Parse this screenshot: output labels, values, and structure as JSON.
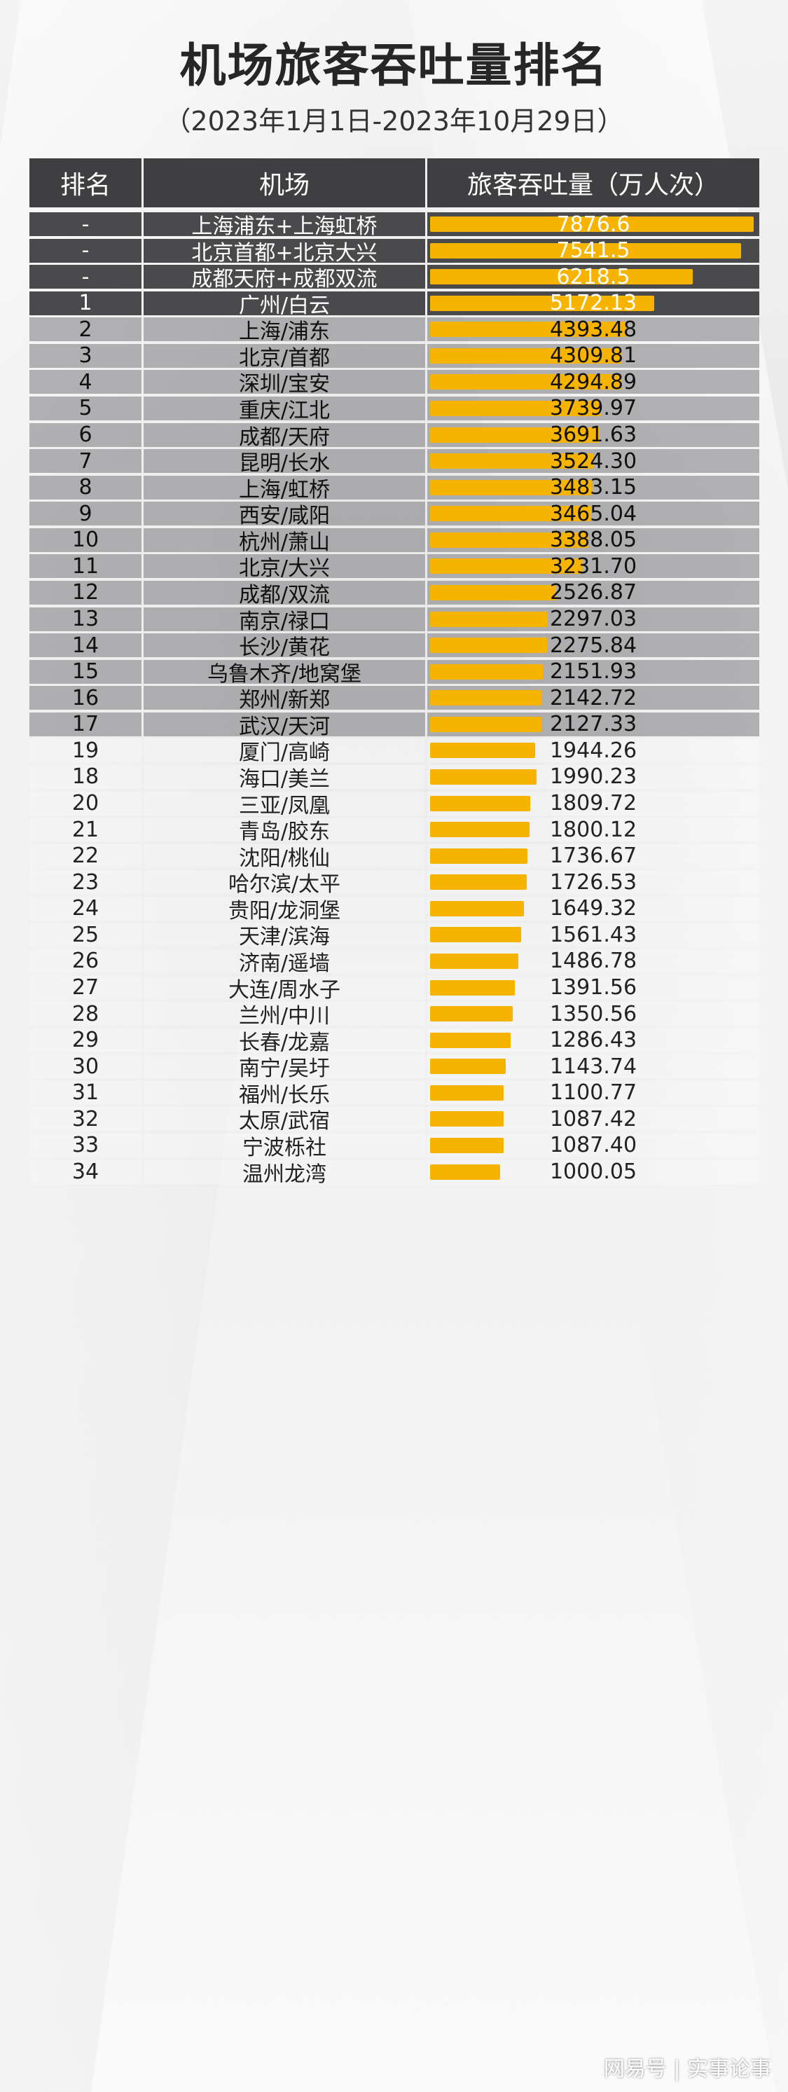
{
  "title": "机场旅客吞吐量排名",
  "subtitle": "（2023年1月1日-2023年10月29日）",
  "watermark": "网易号 | 实事论事",
  "colors": {
    "bar": "#f6b300",
    "header": "#3f3f41",
    "dark_row": "#4a4a4c"
  },
  "chart_data": {
    "type": "table",
    "title": "机场旅客吞吐量排名",
    "subtitle": "（2023年1月1日-2023年10月29日）",
    "columns": [
      "排名",
      "机场",
      "旅客吞吐量（万人次）"
    ],
    "bar_max": 7876.6,
    "rows": [
      {
        "rank": "-",
        "airport": "上海浦东+上海虹桥",
        "value": "7876.6",
        "shade": "dark"
      },
      {
        "rank": "-",
        "airport": "北京首都+北京大兴",
        "value": "7541.5",
        "shade": "dark"
      },
      {
        "rank": "-",
        "airport": "成都天府+成都双流",
        "value": "6218.5",
        "shade": "dark"
      },
      {
        "rank": "1",
        "airport": "广州/白云",
        "value": "5172.13",
        "shade": "dark"
      },
      {
        "rank": "2",
        "airport": "上海/浦东",
        "value": "4393.48",
        "shade": "mid"
      },
      {
        "rank": "3",
        "airport": "北京/首都",
        "value": "4309.81",
        "shade": "mid"
      },
      {
        "rank": "4",
        "airport": "深圳/宝安",
        "value": "4294.89",
        "shade": "mid"
      },
      {
        "rank": "5",
        "airport": "重庆/江北",
        "value": "3739.97",
        "shade": "mid"
      },
      {
        "rank": "6",
        "airport": "成都/天府",
        "value": "3691.63",
        "shade": "mid"
      },
      {
        "rank": "7",
        "airport": "昆明/长水",
        "value": "3524.30",
        "shade": "mid"
      },
      {
        "rank": "8",
        "airport": "上海/虹桥",
        "value": "3483.15",
        "shade": "mid"
      },
      {
        "rank": "9",
        "airport": "西安/咸阳",
        "value": "3465.04",
        "shade": "mid"
      },
      {
        "rank": "10",
        "airport": "杭州/萧山",
        "value": "3388.05",
        "shade": "mid"
      },
      {
        "rank": "11",
        "airport": "北京/大兴",
        "value": "3231.70",
        "shade": "mid"
      },
      {
        "rank": "12",
        "airport": "成都/双流",
        "value": "2526.87",
        "shade": "mid"
      },
      {
        "rank": "13",
        "airport": "南京/禄口",
        "value": "2297.03",
        "shade": "mid"
      },
      {
        "rank": "14",
        "airport": "长沙/黄花",
        "value": "2275.84",
        "shade": "mid"
      },
      {
        "rank": "15",
        "airport": "乌鲁木齐/地窝堡",
        "value": "2151.93",
        "shade": "mid"
      },
      {
        "rank": "16",
        "airport": "郑州/新郑",
        "value": "2142.72",
        "shade": "mid"
      },
      {
        "rank": "17",
        "airport": "武汉/天河",
        "value": "2127.33",
        "shade": "mid"
      },
      {
        "rank": "19",
        "airport": "厦门/高崎",
        "value": "1944.26",
        "shade": "light"
      },
      {
        "rank": "18",
        "airport": "海口/美兰",
        "value": "1990.23",
        "shade": "light"
      },
      {
        "rank": "20",
        "airport": "三亚/凤凰",
        "value": "1809.72",
        "shade": "light"
      },
      {
        "rank": "21",
        "airport": "青岛/胶东",
        "value": "1800.12",
        "shade": "light"
      },
      {
        "rank": "22",
        "airport": "沈阳/桃仙",
        "value": "1736.67",
        "shade": "light"
      },
      {
        "rank": "23",
        "airport": "哈尔滨/太平",
        "value": "1726.53",
        "shade": "light"
      },
      {
        "rank": "24",
        "airport": "贵阳/龙洞堡",
        "value": "1649.32",
        "shade": "light"
      },
      {
        "rank": "25",
        "airport": "天津/滨海",
        "value": "1561.43",
        "shade": "light"
      },
      {
        "rank": "26",
        "airport": "济南/遥墙",
        "value": "1486.78",
        "shade": "light"
      },
      {
        "rank": "27",
        "airport": "大连/周水子",
        "value": "1391.56",
        "shade": "light"
      },
      {
        "rank": "28",
        "airport": "兰州/中川",
        "value": "1350.56",
        "shade": "light"
      },
      {
        "rank": "29",
        "airport": "长春/龙嘉",
        "value": "1286.43",
        "shade": "light"
      },
      {
        "rank": "30",
        "airport": "南宁/吴圩",
        "value": "1143.74",
        "shade": "light"
      },
      {
        "rank": "31",
        "airport": "福州/长乐",
        "value": "1100.77",
        "shade": "light"
      },
      {
        "rank": "32",
        "airport": "太原/武宿",
        "value": "1087.42",
        "shade": "light"
      },
      {
        "rank": "33",
        "airport": "宁波栎社",
        "value": "1087.40",
        "shade": "light"
      },
      {
        "rank": "34",
        "airport": "温州龙湾",
        "value": "1000.05",
        "shade": "light"
      }
    ]
  }
}
